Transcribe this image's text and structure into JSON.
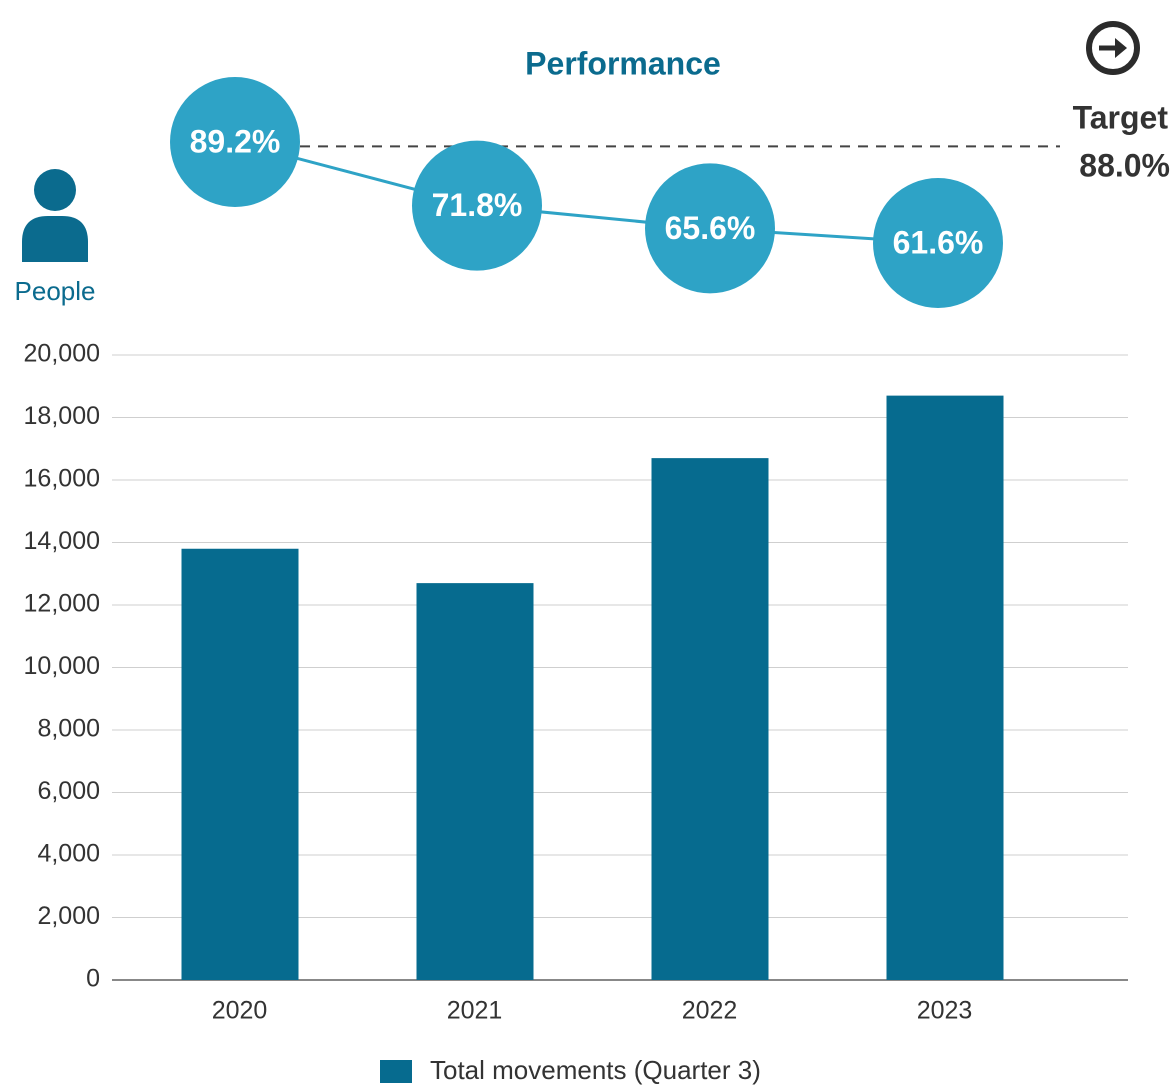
{
  "chart_data": {
    "type": "bar",
    "title": "Performance",
    "y_axis_label": "People",
    "categories": [
      "2020",
      "2021",
      "2022",
      "2023"
    ],
    "series": [
      {
        "name": "Total movements (Quarter 3)",
        "color": "#066b8f",
        "values": [
          13800,
          12700,
          16700,
          18700
        ]
      }
    ],
    "ylim": [
      0,
      20000
    ],
    "yticks": [
      0,
      {
        "value": 2000,
        "label": "2,000"
      },
      {
        "value": 4000,
        "label": "4,000"
      },
      {
        "value": 6000,
        "label": "6,000"
      },
      {
        "value": 8000,
        "label": "8,000"
      },
      {
        "value": 10000,
        "label": "10,000"
      },
      {
        "value": 12000,
        "label": "12,000"
      },
      {
        "value": 14000,
        "label": "14,000"
      },
      {
        "value": 16000,
        "label": "16,000"
      },
      {
        "value": 18000,
        "label": "18,000"
      },
      {
        "value": 20000,
        "label": "20,000"
      }
    ],
    "grid": true,
    "performance": {
      "type": "line",
      "color": "#2ea3c6",
      "values": [
        89.2,
        71.8,
        65.6,
        61.6
      ],
      "value_labels": [
        "89.2%",
        "71.8%",
        "65.6%",
        "61.6%"
      ],
      "target": {
        "label": "Target",
        "value": 88.0,
        "value_label": "88.0%"
      }
    }
  }
}
